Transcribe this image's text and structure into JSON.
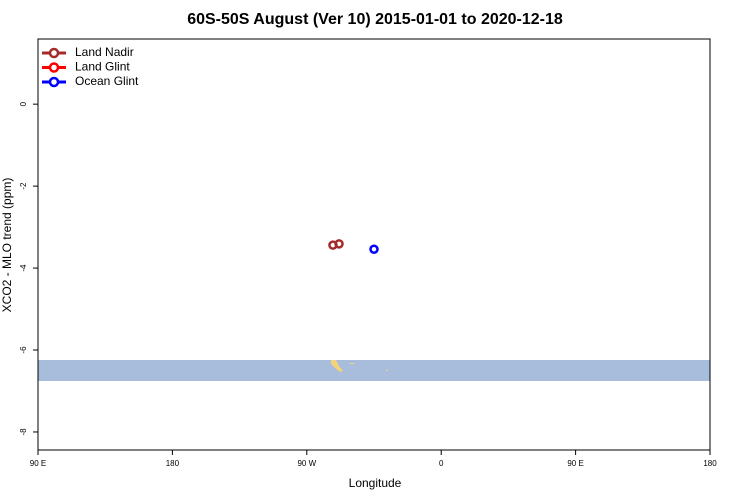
{
  "chart_data": {
    "type": "scatter",
    "title": "60S-50S August (Ver 10)   2015-01-01 to 2020-12-18",
    "x_label": "Longitude",
    "y_label": "XCO2 - MLO trend (ppm)",
    "xlim": [
      90,
      540
    ],
    "xticks": [
      {
        "value": 90,
        "label": "90 E"
      },
      {
        "value": 180,
        "label": "180"
      },
      {
        "value": 270,
        "label": "90 W"
      },
      {
        "value": 360,
        "label": "0"
      },
      {
        "value": 450,
        "label": "90 E"
      },
      {
        "value": 540,
        "label": "180"
      }
    ],
    "ylim": [
      -8.44,
      1.59
    ],
    "yticks": [
      0,
      -2,
      -4,
      -6,
      -8
    ],
    "legend": "top-left",
    "series": [
      {
        "name": "Land Nadir",
        "color": "#a52a2a",
        "x": [
          287.5,
          291.6
        ],
        "values": [
          -3.44,
          -3.41
        ]
      },
      {
        "name": "Land Glint",
        "color": "#ff0000",
        "x": [],
        "values": []
      },
      {
        "name": "Ocean Glint",
        "color": "#0000ff",
        "x": [
          315
        ],
        "values": [
          -3.54
        ]
      }
    ]
  }
}
